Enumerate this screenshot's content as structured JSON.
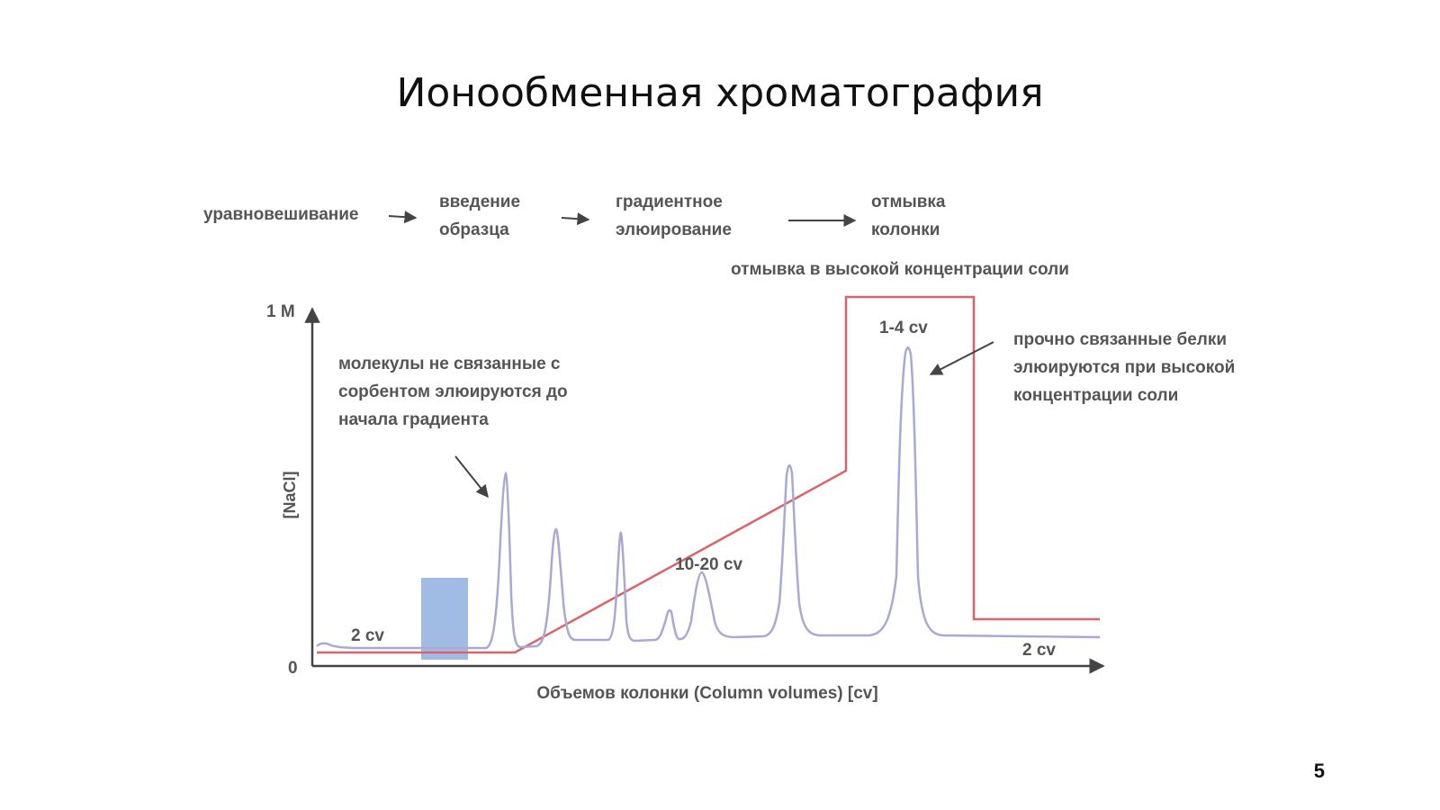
{
  "slide": {
    "title": "Ионообменная хроматография",
    "page_number": "5"
  },
  "steps": [
    {
      "lines": [
        "уравновешивание"
      ]
    },
    {
      "lines": [
        "введение",
        "образца"
      ]
    },
    {
      "lines": [
        "градиентное",
        "элюирование"
      ]
    },
    {
      "lines": [
        "отмывка",
        "колонки"
      ]
    }
  ],
  "labels": {
    "high_salt_wash": "отмывка в высокой концентрации соли",
    "y_top": "1 M",
    "y_zero": "0",
    "y_axis": "[NaCl]",
    "x_axis": "Объемов колонки (Column volumes) [cv]",
    "cv_start": "2 cv",
    "cv_gradient": "10-20 cv",
    "cv_wash": "1-4 cv",
    "cv_end": "2 cv",
    "unbound_note": [
      "молекулы не связанные с",
      "сорбентом элюируются до",
      "начала градиента"
    ],
    "bound_note": [
      "прочно связанные белки",
      "элюируются при высокой",
      "концентрации соли"
    ]
  },
  "colors": {
    "salt_line": "#d9636a",
    "absorbance_line": "#a9a9d2",
    "sample_block": "#8fb0e0",
    "axis": "#444444",
    "text": "#555555"
  }
}
